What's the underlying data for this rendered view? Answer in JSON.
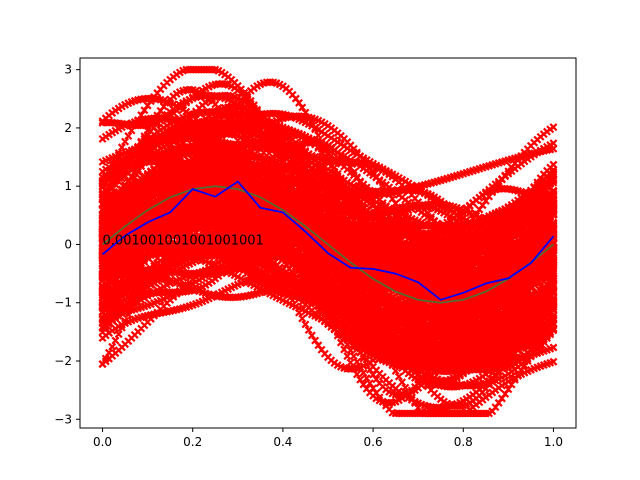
{
  "chart_data": {
    "type": "line",
    "title": "",
    "xlabel": "",
    "ylabel": "",
    "xlim": [
      -0.05,
      1.05
    ],
    "ylim": [
      -3.15,
      3.2
    ],
    "x_ticks": [
      0.0,
      0.2,
      0.4,
      0.6,
      0.8,
      1.0
    ],
    "x_tick_labels": [
      "0.0",
      "0.2",
      "0.4",
      "0.6",
      "0.8",
      "1.0"
    ],
    "y_ticks": [
      -3,
      -2,
      -1,
      0,
      1,
      2,
      3
    ],
    "y_tick_labels": [
      "−3",
      "−2",
      "−1",
      "0",
      "1",
      "2",
      "3"
    ],
    "grid": false,
    "annotation": {
      "text": "0.001001001001001001",
      "x": 0.0,
      "y": 0.07
    },
    "samples": {
      "marker": "x",
      "color": "#ff0000",
      "count": 120,
      "x_range": [
        0.0,
        1.0
      ],
      "y_range": [
        -2.9,
        3.0
      ]
    },
    "series": [
      {
        "color": "#0000ff",
        "x": [
          0.0,
          0.05,
          0.1,
          0.15,
          0.2,
          0.25,
          0.3,
          0.35,
          0.4,
          0.45,
          0.5,
          0.55,
          0.6,
          0.65,
          0.7,
          0.75,
          0.8,
          0.85,
          0.9,
          0.95,
          1.0
        ],
        "values": [
          -0.17,
          0.15,
          0.38,
          0.55,
          0.95,
          0.82,
          1.08,
          0.63,
          0.55,
          0.22,
          -0.15,
          -0.4,
          -0.42,
          -0.5,
          -0.65,
          -0.95,
          -0.83,
          -0.67,
          -0.58,
          -0.32,
          0.14
        ]
      },
      {
        "color": "#556b2f",
        "x": [
          0.0,
          0.05,
          0.1,
          0.15,
          0.2,
          0.25,
          0.3,
          0.35,
          0.4,
          0.45,
          0.5,
          0.55,
          0.6,
          0.65,
          0.7,
          0.75,
          0.8,
          0.85,
          0.9,
          0.95,
          1.0
        ],
        "values": [
          0.0,
          0.31,
          0.59,
          0.81,
          0.95,
          1.0,
          0.95,
          0.81,
          0.59,
          0.31,
          0.0,
          -0.31,
          -0.59,
          -0.81,
          -0.95,
          -1.0,
          -0.95,
          -0.81,
          -0.59,
          -0.31,
          0.0
        ]
      }
    ]
  }
}
